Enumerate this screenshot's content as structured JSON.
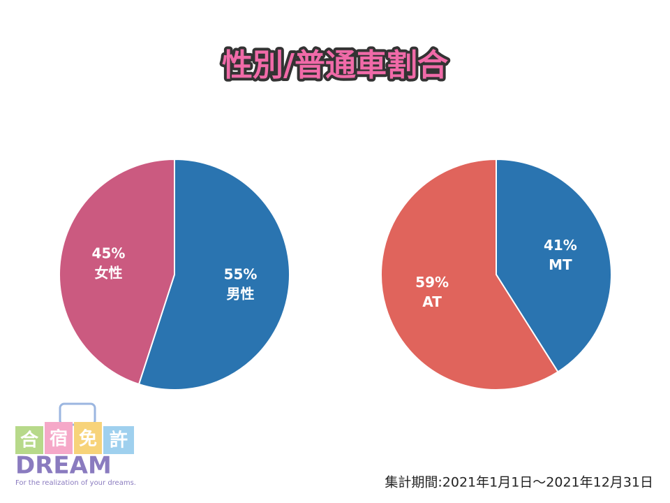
{
  "title": "性別/普通車割合",
  "chart_data": [
    {
      "type": "pie",
      "categories": [
        "男性",
        "女性"
      ],
      "values": [
        55,
        45
      ],
      "value_labels": [
        "55%",
        "45%"
      ],
      "colors": [
        "#2a74b0",
        "#cb5a80"
      ]
    },
    {
      "type": "pie",
      "categories": [
        "MT",
        "AT"
      ],
      "values": [
        41,
        59
      ],
      "value_labels": [
        "41%",
        "59%"
      ],
      "colors": [
        "#2a74b0",
        "#e0645c"
      ]
    }
  ],
  "logo": {
    "words": [
      "合",
      "宿",
      "免",
      "許"
    ],
    "name": "DREAM",
    "tagline": "For the realization of your dreams."
  },
  "period": "集計期間:2021年1月1日～2021年12月31日"
}
